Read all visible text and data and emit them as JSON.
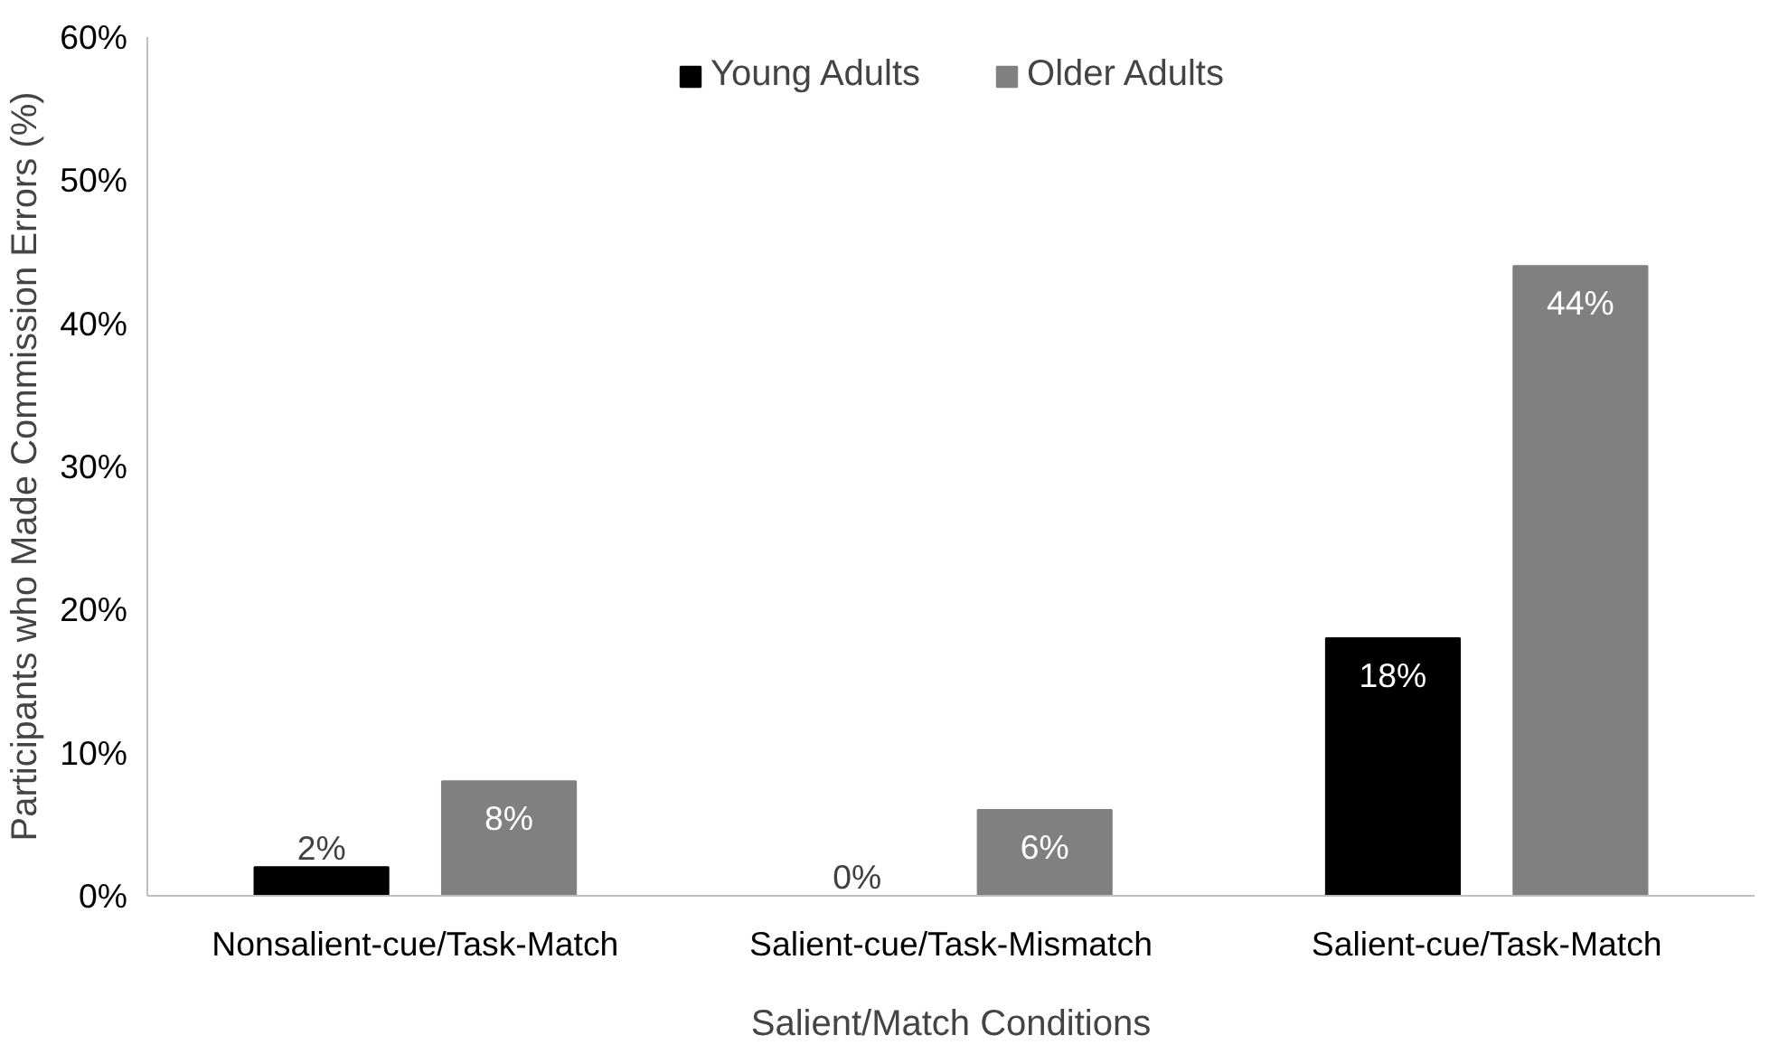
{
  "chart_data": {
    "type": "bar",
    "xlabel": "Salient/Match Conditions",
    "ylabel": "Participants who Made Commission Errors (%)",
    "categories": [
      "Nonsalient-cue/Task-Match",
      "Salient-cue/Task-Mismatch",
      "Salient-cue/Task-Match"
    ],
    "series": [
      {
        "name": "Young Adults",
        "color": "#000000",
        "values": [
          2,
          0,
          18
        ],
        "value_labels": [
          "2%",
          "0%",
          "18%"
        ]
      },
      {
        "name": "Older Adults",
        "color": "#808080",
        "values": [
          8,
          6,
          44
        ],
        "value_labels": [
          "8%",
          "6%",
          "44%"
        ]
      }
    ],
    "ylim": [
      0,
      60
    ],
    "yticks": [
      {
        "value": 0,
        "label": "0%"
      },
      {
        "value": 10,
        "label": "10%"
      },
      {
        "value": 20,
        "label": "20%"
      },
      {
        "value": 30,
        "label": "30%"
      },
      {
        "value": 40,
        "label": "40%"
      },
      {
        "value": 50,
        "label": "50%"
      },
      {
        "value": 60,
        "label": "60%"
      }
    ],
    "grid": false,
    "legend": "top"
  }
}
